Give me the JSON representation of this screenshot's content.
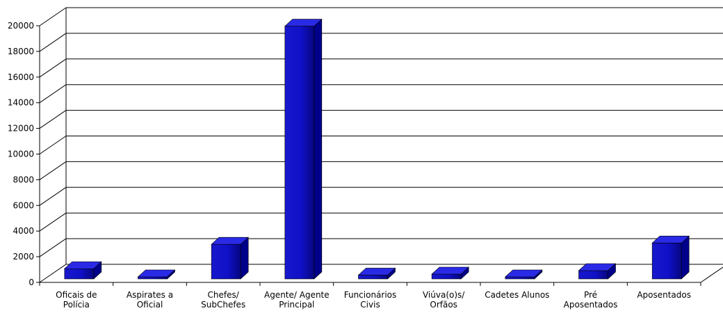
{
  "chart_data": {
    "type": "bar",
    "style": "3d",
    "categories": [
      [
        "Oficais de",
        "Polícia"
      ],
      [
        "Aspirates a",
        "Oficial"
      ],
      [
        "Chefes/",
        "SubChefes"
      ],
      [
        "Agente/ Agente",
        "Principal"
      ],
      [
        "Funcionários",
        "Civis"
      ],
      [
        "Viúva(o)s/",
        "Orfãos"
      ],
      [
        "Cadetes Alunos"
      ],
      [
        "Pré",
        "Aposentados"
      ],
      [
        "Aposentados"
      ]
    ],
    "values": [
      800,
      40,
      2700,
      19700,
      300,
      380,
      120,
      650,
      2800
    ],
    "ylim": [
      0,
      20000
    ],
    "yticks": [
      "0",
      "2000",
      "4000",
      "6000",
      "8000",
      "10000",
      "12000",
      "14000",
      "16000",
      "18000",
      "20000"
    ],
    "grid": true,
    "title": "",
    "xlabel": "",
    "ylabel": "",
    "colors": {
      "bar_front": "#1414d4",
      "bar_dark": "#00006a",
      "bar_top": "#2a2ae6",
      "bar_side": "#00008a",
      "grid": "#000000"
    }
  }
}
